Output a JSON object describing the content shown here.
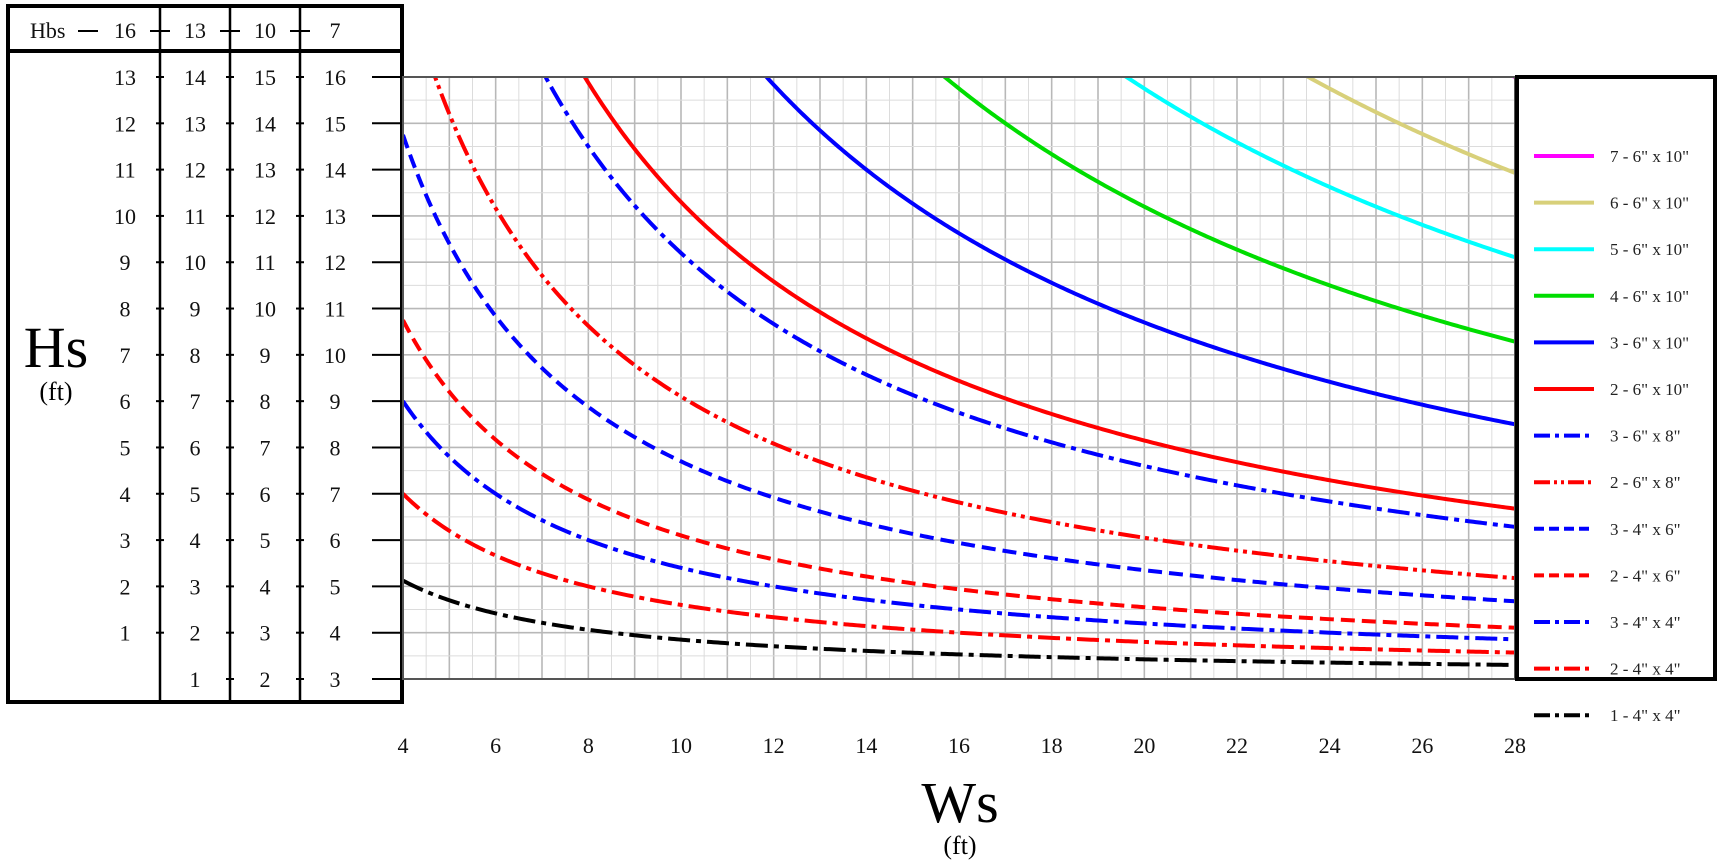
{
  "chart_data": {
    "type": "line",
    "xlabel": "Ws",
    "xunit": "(ft)",
    "ylabel": "Hs",
    "yunit": "(ft)",
    "hbs_label": "Hbs",
    "xlim": [
      4,
      28
    ],
    "ylim": [
      0,
      13
    ],
    "x_ticks": [
      "4",
      "6",
      "8",
      "10",
      "12",
      "14",
      "16",
      "18",
      "20",
      "22",
      "24",
      "26",
      "28"
    ],
    "hbs_values": [
      "16",
      "13",
      "10",
      "7"
    ],
    "y_columns": [
      [
        "1",
        "2",
        "3",
        "4",
        "5",
        "6",
        "7",
        "8",
        "9",
        "10",
        "11",
        "12",
        "13"
      ],
      [
        "1",
        "2",
        "3",
        "4",
        "5",
        "6",
        "7",
        "8",
        "9",
        "10",
        "11",
        "12",
        "13",
        "14"
      ],
      [
        "2",
        "3",
        "4",
        "5",
        "6",
        "7",
        "8",
        "9",
        "10",
        "11",
        "12",
        "13",
        "14",
        "15"
      ],
      [
        "3",
        "4",
        "5",
        "6",
        "7",
        "8",
        "9",
        "10",
        "11",
        "12",
        "13",
        "14",
        "15",
        "16"
      ]
    ],
    "grid": true,
    "legend_position": "right",
    "series": [
      {
        "name": "7 - 6\" x 10\"",
        "color": "#ff00ff",
        "dash": "solid",
        "k": 364
      },
      {
        "name": "6 - 6\" x 10\"",
        "color": "#d8d07a",
        "dash": "solid",
        "k": 306
      },
      {
        "name": "5 - 6\" x 10\"",
        "color": "#00ffff",
        "dash": "solid",
        "k": 255
      },
      {
        "name": "4 - 6\" x 10\"",
        "color": "#00dd00",
        "dash": "solid",
        "k": 204
      },
      {
        "name": "3 - 6\" x 10\"",
        "color": "#0000ff",
        "dash": "solid",
        "k": 154
      },
      {
        "name": "2 - 6\" x 10\"",
        "color": "#ff0000",
        "dash": "solid",
        "k": 103
      },
      {
        "name": "3 - 6\" x 8\"",
        "color": "#0000ff",
        "dash": "dashdot",
        "k": 92
      },
      {
        "name": "2 - 6\" x 8\"",
        "color": "#ff0000",
        "dash": "dashdotdot",
        "k": 61
      },
      {
        "name": "3 - 4\" x 6\"",
        "color": "#0000ff",
        "dash": "dash",
        "k": 47
      },
      {
        "name": "2 - 4\" x 6\"",
        "color": "#ff0000",
        "dash": "dash",
        "k": 31
      },
      {
        "name": "3 - 4\" x 4\"",
        "color": "#0000ff",
        "dash": "dashdot",
        "k": 24
      },
      {
        "name": "2 - 4\" x 4\"",
        "color": "#ff0000",
        "dash": "dashdot",
        "k": 16
      },
      {
        "name": "1 - 4\" x 4\"",
        "color": "#000000",
        "dash": "dashdot",
        "k": 8.5
      }
    ],
    "curve_note": "Each series follows Hs = k / Ws (feet)"
  }
}
